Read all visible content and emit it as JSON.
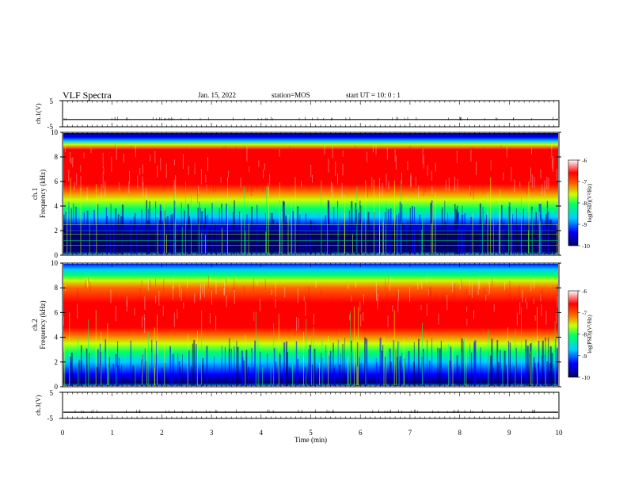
{
  "header": {
    "title": "VLF Spectra",
    "date": "Jan. 15, 2022",
    "station": "station=MOS",
    "start": "start  UT =   10: 0  : 1"
  },
  "chart_data": [
    {
      "type": "line",
      "panel": "ch1_waveform",
      "ylabel": "ch.1(V)",
      "ylim": [
        -5,
        5
      ],
      "yticks": [
        "5",
        "-5"
      ],
      "xlim": [
        0,
        10
      ],
      "series": [
        {
          "values_V": [
            -2.2,
            -2.2
          ]
        }
      ]
    },
    {
      "type": "heatmap",
      "panel": "ch1_spectrogram",
      "ylabel": "ch.1\nFrequency (kHz)",
      "ylim": [
        0,
        10
      ],
      "yticks": [
        "0",
        "2",
        "4",
        "6",
        "8",
        "10"
      ],
      "xlim": [
        0,
        10
      ],
      "colorbar": {
        "label": "log(PSD)(V²/Hz)",
        "range": [
          -10,
          -6
        ],
        "ticks": [
          "-6",
          "-7",
          "-8",
          "-9",
          "-10"
        ]
      }
    },
    {
      "type": "heatmap",
      "panel": "ch2_spectrogram",
      "ylabel": "ch.2\nFrequency (kHz)",
      "ylim": [
        0,
        10
      ],
      "yticks": [
        "0",
        "2",
        "4",
        "6",
        "8",
        "10"
      ],
      "xlim": [
        0,
        10
      ],
      "colorbar": {
        "label": "log(PSD)(V²/Hz)",
        "range": [
          -10,
          -6
        ],
        "ticks": [
          "-6",
          "-7",
          "-8",
          "-9",
          "-10"
        ]
      }
    },
    {
      "type": "line",
      "panel": "ch3_waveform",
      "ylabel": "ch.3(V)",
      "ylim": [
        -5,
        5
      ],
      "yticks": [
        "5",
        "-5"
      ],
      "xlim": [
        0,
        10
      ],
      "xlabel": "Time (min)",
      "xticks": [
        "0",
        "1",
        "2",
        "3",
        "4",
        "5",
        "6",
        "7",
        "8",
        "9",
        "10"
      ],
      "series": [
        {
          "values_V": [
            -2.6,
            -2.6
          ]
        }
      ]
    }
  ],
  "colors": {
    "colormap": [
      "#000066",
      "#0000ff",
      "#00ccff",
      "#00ff66",
      "#ccff00",
      "#ff6600",
      "#ff0000",
      "#ffffff"
    ]
  }
}
